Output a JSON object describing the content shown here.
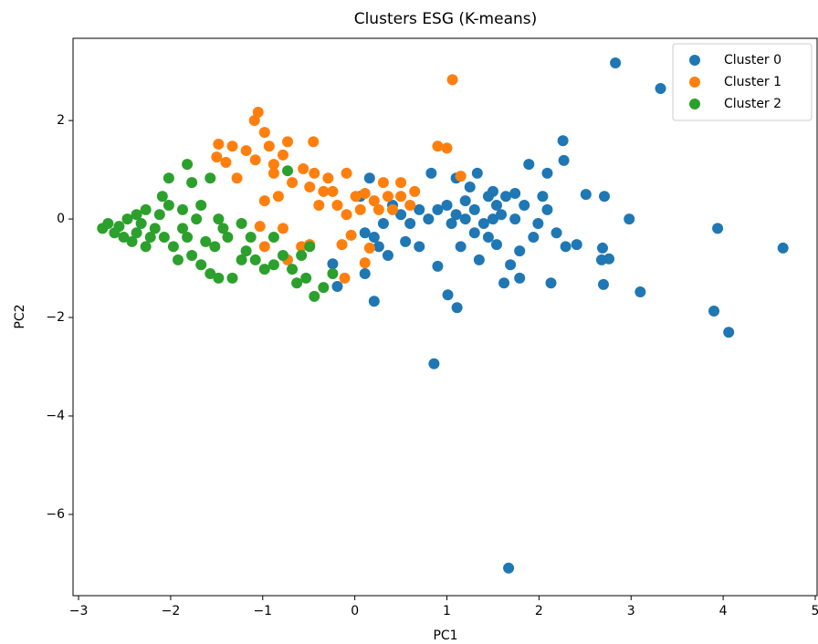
{
  "chart_data": {
    "type": "scatter",
    "title": "Clusters ESG (K-means)",
    "x_label": "PC1",
    "y_label": "PC2",
    "xlim": [
      -3.06,
      5.02
    ],
    "ylim": [
      -7.65,
      3.67
    ],
    "xticks": [
      {
        "value": -3,
        "label": "−3"
      },
      {
        "value": -2,
        "label": "−2"
      },
      {
        "value": -1,
        "label": "−1"
      },
      0,
      1,
      2,
      3,
      4,
      5
    ],
    "yticks": [
      {
        "value": -6,
        "label": "−6"
      },
      {
        "value": -4,
        "label": "−4"
      },
      {
        "value": -2,
        "label": "−2"
      },
      0,
      2
    ],
    "legend": "upper right",
    "series": [
      {
        "name": "Cluster 0",
        "color": "#1f77b4",
        "x": [
          2.83,
          3.32,
          1.67,
          0.86,
          4.65,
          3.94,
          3.9,
          4.06,
          3.1,
          2.98,
          2.26,
          2.27,
          1.89,
          2.09,
          2.51,
          2.71,
          2.69,
          2.68,
          2.7,
          2.76,
          2.41,
          2.13,
          1.62,
          1.79,
          1.01,
          1.11,
          0.21,
          -0.19,
          -0.24,
          0.11,
          0.36,
          0.9,
          0.7,
          0.83,
          1.1,
          1.33,
          1.5,
          0.9,
          1.0,
          1.1,
          1.2,
          1.3,
          1.4,
          1.5,
          1.54,
          1.2,
          1.05,
          1.3,
          1.45,
          1.59,
          1.64,
          0.8,
          0.7,
          0.6,
          0.5,
          0.41,
          0.31,
          0.21,
          0.11,
          0.06,
          0.16,
          0.26,
          0.55,
          1.15,
          1.54,
          1.74,
          1.84,
          1.99,
          2.09,
          2.04,
          2.19,
          2.29,
          1.94,
          1.79,
          1.69,
          1.35,
          1.25,
          1.45,
          1.74
        ],
        "values": [
          3.17,
          2.65,
          -7.09,
          -2.94,
          -0.59,
          -0.19,
          -1.87,
          -2.3,
          -1.48,
          0,
          1.59,
          1.19,
          1.11,
          0.93,
          0.5,
          0.46,
          -0.59,
          -0.83,
          -1.33,
          -0.81,
          -0.52,
          -1.3,
          -1.3,
          -1.2,
          -1.54,
          -1.8,
          -1.67,
          -1.37,
          -0.91,
          -1.11,
          -0.74,
          -0.96,
          -0.56,
          0.93,
          0.83,
          0.93,
          0.56,
          0.19,
          0.28,
          0.09,
          0,
          0.19,
          -0.09,
          0,
          0.28,
          0.37,
          -0.09,
          -0.28,
          -0.37,
          0.09,
          0.46,
          0,
          0.19,
          -0.09,
          0.09,
          0.28,
          -0.09,
          -0.37,
          -0.28,
          0.46,
          0.83,
          -0.56,
          -0.46,
          -0.56,
          -0.52,
          0,
          0.28,
          -0.09,
          0.19,
          0.46,
          -0.28,
          -0.56,
          -0.37,
          -0.65,
          -0.93,
          -0.83,
          0.65,
          0.46,
          0.52
        ]
      },
      {
        "name": "Cluster 1",
        "color": "#ff7f0e",
        "x": [
          1.06,
          -1.05,
          -1.09,
          -0.98,
          -0.93,
          -1.48,
          -1.33,
          -1.18,
          -1.08,
          -0.88,
          -0.78,
          -0.73,
          -0.45,
          -0.56,
          -0.44,
          -0.29,
          -0.34,
          -0.49,
          -0.68,
          -0.83,
          -0.98,
          -1.03,
          -0.78,
          -0.98,
          -0.58,
          -0.73,
          -0.49,
          -0.14,
          -0.04,
          -0.09,
          0.01,
          0.11,
          0.21,
          0.31,
          0.36,
          0.5,
          0.65,
          -0.09,
          0.9,
          1.0,
          1.15,
          -0.11,
          0.16,
          0.11,
          -1.28,
          -1.4,
          -0.88,
          -0.39,
          -0.24,
          -0.19,
          0.06,
          0.26,
          0.41,
          0.5,
          0.6,
          -1.5
        ],
        "values": [
          2.83,
          2.17,
          2.0,
          1.76,
          1.48,
          1.52,
          1.48,
          1.39,
          1.2,
          1.11,
          1.3,
          1.57,
          1.57,
          1.02,
          0.93,
          0.83,
          0.56,
          0.65,
          0.74,
          0.46,
          0.37,
          -0.15,
          -0.19,
          -0.56,
          -0.56,
          -0.83,
          -0.52,
          -0.52,
          -0.33,
          0.09,
          0.46,
          0.52,
          0.37,
          0.74,
          0.46,
          0.46,
          0.56,
          0.93,
          1.48,
          1.44,
          0.87,
          -1.2,
          -0.59,
          -0.89,
          0.83,
          1.15,
          0.93,
          0.28,
          0.56,
          0.28,
          0.19,
          0.19,
          0.19,
          0.74,
          0.28,
          1.26
        ]
      },
      {
        "name": "Cluster 2",
        "color": "#2ca02c",
        "x": [
          -2.74,
          -2.68,
          -2.61,
          -2.56,
          -2.51,
          -2.47,
          -2.42,
          -2.37,
          -2.32,
          -2.27,
          -2.22,
          -2.17,
          -2.12,
          -2.07,
          -2.02,
          -1.97,
          -1.92,
          -1.87,
          -1.82,
          -1.77,
          -1.72,
          -1.67,
          -1.62,
          -1.57,
          -1.52,
          -1.48,
          -1.43,
          -1.33,
          -1.23,
          -1.18,
          -1.08,
          -0.98,
          -0.88,
          -0.78,
          -0.68,
          -0.63,
          -0.53,
          -0.44,
          -0.34,
          -0.24,
          -0.49,
          -0.58,
          -0.88,
          -2.02,
          -1.82,
          -1.77,
          -2.09,
          -1.67,
          -2.27,
          -2.37,
          -0.73,
          -1.57,
          -1.87,
          -1.48,
          -1.23,
          -1.13,
          -1.38
        ],
        "values": [
          -0.19,
          -0.09,
          -0.28,
          -0.15,
          -0.37,
          0,
          -0.46,
          -0.28,
          -0.09,
          -0.56,
          -0.37,
          -0.19,
          0.09,
          -0.37,
          0.28,
          -0.56,
          -0.83,
          -0.19,
          -0.37,
          -0.74,
          0,
          -0.93,
          -0.46,
          -1.11,
          -0.56,
          -1.2,
          -0.19,
          -1.2,
          -0.09,
          -0.65,
          -0.83,
          -1.02,
          -0.93,
          -0.74,
          -1.02,
          -1.3,
          -1.2,
          -1.57,
          -1.39,
          -1.11,
          -0.56,
          -0.74,
          -0.37,
          0.83,
          1.11,
          0.74,
          0.46,
          0.28,
          0.19,
          0.09,
          0.98,
          0.83,
          0.19,
          0,
          -0.83,
          -0.37,
          -0.37
        ]
      }
    ]
  }
}
